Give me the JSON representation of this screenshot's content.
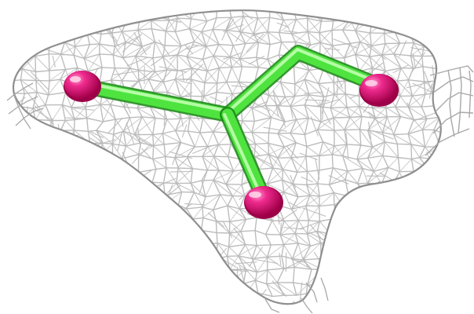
{
  "scene": {
    "background_color": "#ffffff",
    "mesh": {
      "color": "#b9b9b9",
      "shadow_color": "#8f8f8f",
      "style": "wireframe"
    },
    "molecule": {
      "bond_color": "#46d93b",
      "bond_highlight": "#a8f59b",
      "bond_shadow": "#24a51f",
      "atom_color": "#e0006f",
      "atom_highlight": "#ff86c2",
      "atom_count": 3,
      "center_count": 1
    }
  }
}
